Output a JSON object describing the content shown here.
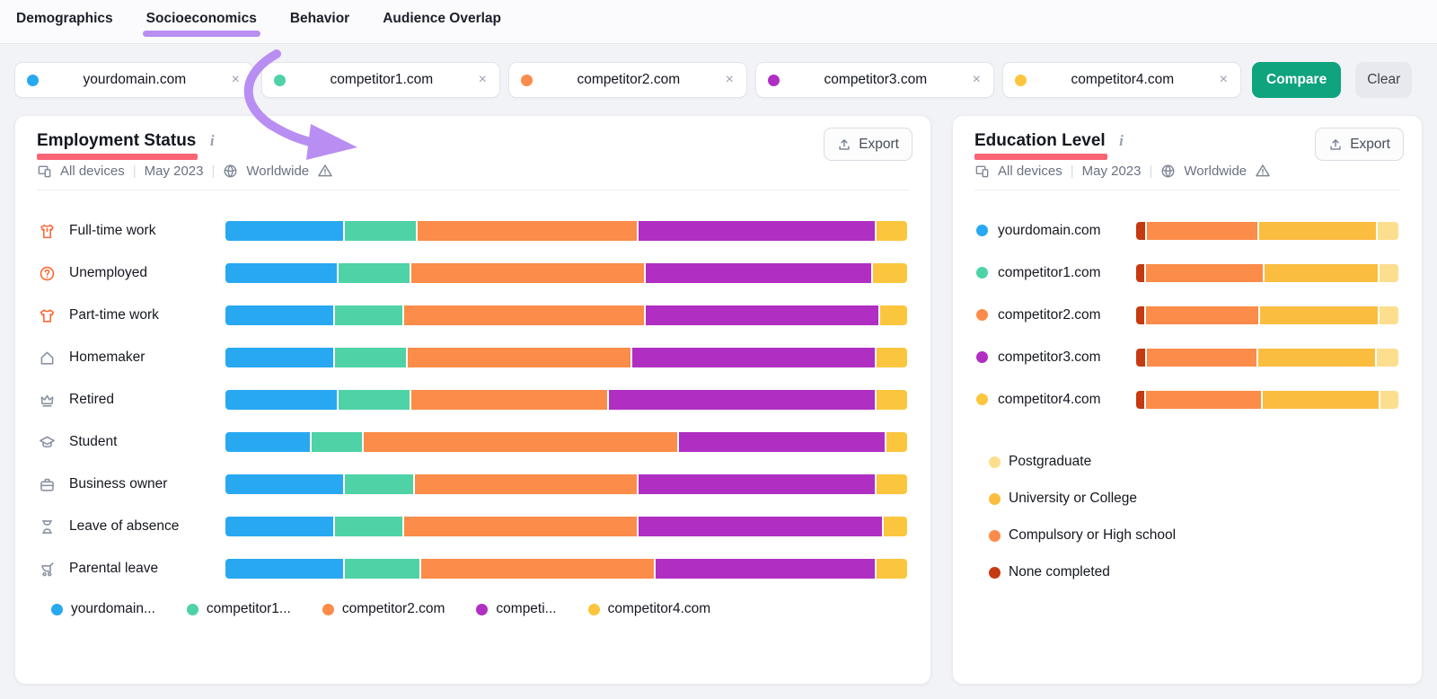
{
  "tabs": {
    "items": [
      {
        "label": "Demographics",
        "active": false
      },
      {
        "label": "Socioeconomics",
        "active": true
      },
      {
        "label": "Behavior",
        "active": false
      },
      {
        "label": "Audience Overlap",
        "active": false
      }
    ]
  },
  "domains": [
    {
      "label": "yourdomain.com",
      "color": "#29A8F2"
    },
    {
      "label": "competitor1.com",
      "color": "#4FD2A5"
    },
    {
      "label": "competitor2.com",
      "color": "#FB8C49"
    },
    {
      "label": "competitor3.com",
      "color": "#B02FC2"
    },
    {
      "label": "competitor4.com",
      "color": "#FBC63D"
    }
  ],
  "actions": {
    "compare": "Compare",
    "clear": "Clear",
    "export": "Export",
    "chip_close": "×"
  },
  "left_card": {
    "title": "Employment Status",
    "info": "i",
    "meta": {
      "devices": "All devices",
      "period": "May 2023",
      "region": "Worldwide",
      "separator": "|"
    }
  },
  "right_card": {
    "title": "Education Level",
    "info": "i",
    "meta": {
      "devices": "All devices",
      "period": "May 2023",
      "region": "Worldwide",
      "separator": "|"
    }
  },
  "legend_left": [
    "yourdomain...",
    "competitor1...",
    "competitor2.com",
    "competi...",
    "competitor4.com"
  ],
  "education_legend": [
    {
      "label": "Postgraduate",
      "color": "#FCDE8E"
    },
    {
      "label": "University or College",
      "color": "#FBBD3F"
    },
    {
      "label": "Compulsory or High school",
      "color": "#FB8C49"
    },
    {
      "label": "None completed",
      "color": "#C63A12"
    }
  ],
  "annotations": {
    "tab_marker_color": "#B98EF2",
    "arrow_color": "#B98EF2",
    "title_underline_color": "#FA6474"
  },
  "chart_data": [
    {
      "type": "bar",
      "stacked": true,
      "orientation": "horizontal",
      "title": "Employment Status",
      "subtitle": "All devices | May 2023 | Worldwide",
      "units": "approx. percent share of stacked bar (no axis labels shown)",
      "categories": [
        "Full-time work",
        "Unemployed",
        "Part-time work",
        "Homemaker",
        "Retired",
        "Student",
        "Business owner",
        "Leave of absence",
        "Parental leave"
      ],
      "category_icons": [
        "jacket-icon",
        "question-circle-icon",
        "tshirt-icon",
        "house-icon",
        "crown-icon",
        "graduation-cap-icon",
        "briefcase-icon",
        "hourglass-icon",
        "stroller-icon"
      ],
      "series": [
        {
          "name": "yourdomain.com",
          "color": "#29A8F2",
          "values": [
            17.5,
            16.5,
            16.0,
            16.0,
            16.5,
            12.5,
            17.5,
            16.0,
            17.5
          ]
        },
        {
          "name": "competitor1.com",
          "color": "#4FD2A5",
          "values": [
            10.5,
            10.5,
            10.0,
            10.5,
            10.5,
            7.5,
            10.0,
            10.0,
            11.0
          ]
        },
        {
          "name": "competitor2.com",
          "color": "#FB8C49",
          "values": [
            32.5,
            34.5,
            35.5,
            33.0,
            29.0,
            46.5,
            33.0,
            34.5,
            34.5
          ]
        },
        {
          "name": "competitor3.com",
          "color": "#B02FC2",
          "values": [
            35.0,
            33.5,
            34.5,
            36.0,
            39.5,
            30.5,
            35.0,
            36.0,
            32.5
          ]
        },
        {
          "name": "competitor4.com",
          "color": "#FBC63D",
          "values": [
            4.5,
            5.0,
            4.0,
            4.5,
            4.5,
            3.0,
            4.5,
            3.5,
            4.5
          ]
        }
      ],
      "legend_position": "bottom"
    },
    {
      "type": "bar",
      "stacked": true,
      "orientation": "horizontal",
      "title": "Education Level",
      "subtitle": "All devices | May 2023 | Worldwide",
      "units": "approx. percent share of stacked bar (no axis labels shown)",
      "categories": [
        "yourdomain.com",
        "competitor1.com",
        "competitor2.com",
        "competitor3.com",
        "competitor4.com"
      ],
      "series": [
        {
          "name": "None completed",
          "color": "#C63A12",
          "values": [
            3.5,
            3.0,
            3.0,
            3.5,
            3.0
          ]
        },
        {
          "name": "Compulsory or High school",
          "color": "#FB8C49",
          "values": [
            43.0,
            45.5,
            44.0,
            42.5,
            45.0
          ]
        },
        {
          "name": "University or College",
          "color": "#FBBD3F",
          "values": [
            45.5,
            44.0,
            45.5,
            45.5,
            45.0
          ]
        },
        {
          "name": "Postgraduate",
          "color": "#FCDE8E",
          "values": [
            8.0,
            7.5,
            7.5,
            8.5,
            7.0
          ]
        }
      ],
      "legend_position": "bottom"
    }
  ]
}
